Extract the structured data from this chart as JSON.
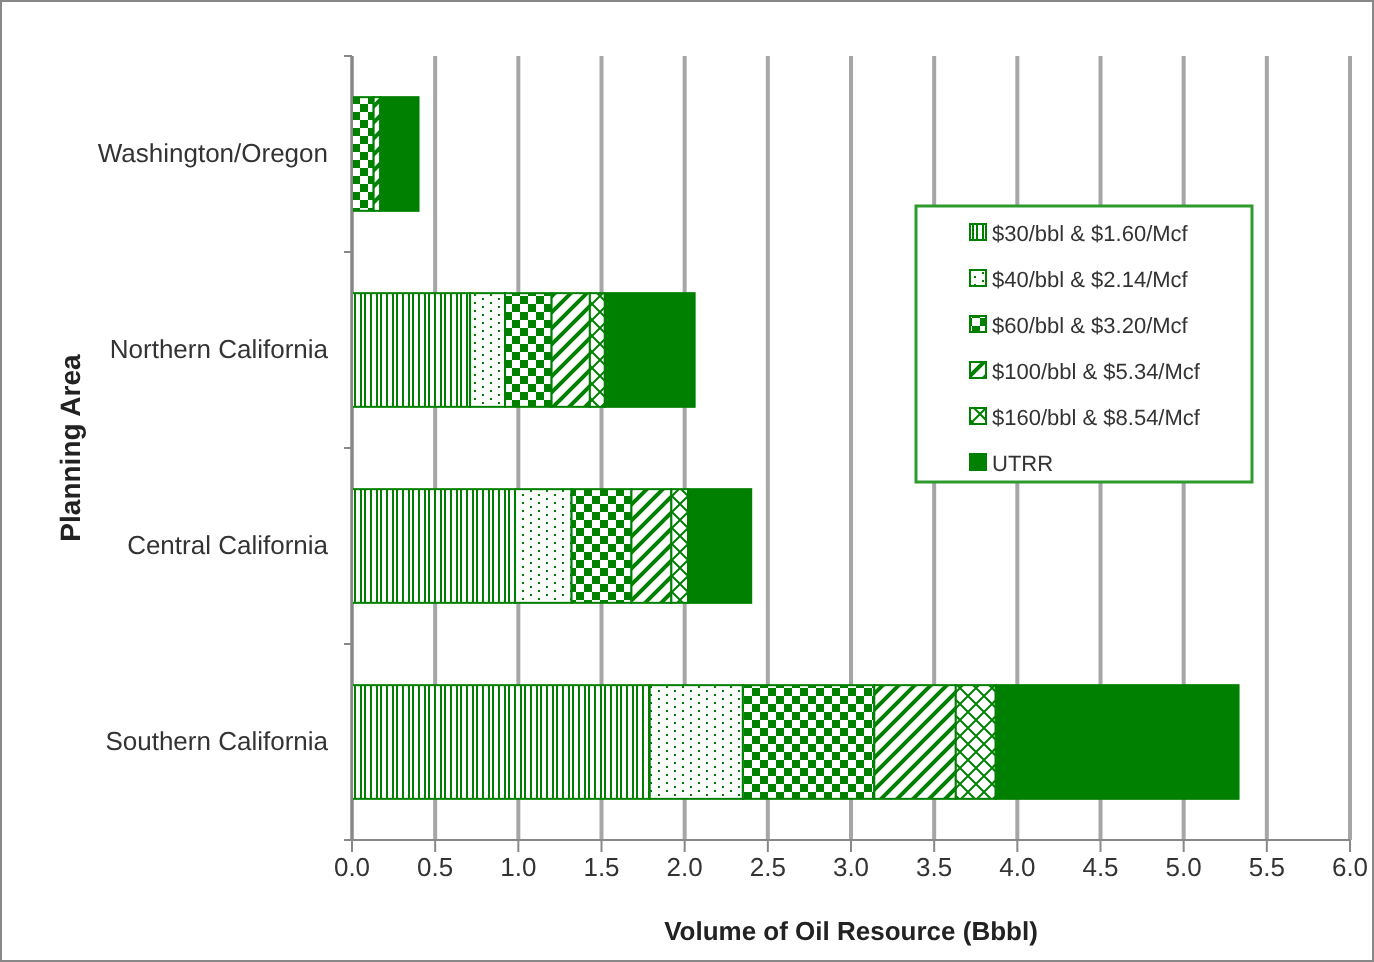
{
  "chart_data": {
    "type": "bar",
    "orientation": "horizontal",
    "stacked": true,
    "xlabel": "Volume of Oil Resource (Bbbl)",
    "ylabel": "Planning Area",
    "categories": [
      "Washington/Oregon",
      "Northern California",
      "Central California",
      "Southern California"
    ],
    "series": [
      {
        "name": "$30/bbl & $1.60/Mcf",
        "color": "#008000",
        "values": [
          null,
          0.71,
          0.98,
          1.79
        ]
      },
      {
        "name": "$40/bbl & $2.14/Mcf",
        "color": "#008000",
        "values": [
          null,
          0.21,
          0.34,
          0.56
        ]
      },
      {
        "name": "$60/bbl & $3.20/Mcf",
        "color": "#008000",
        "values": [
          0.13,
          0.28,
          0.36,
          0.79
        ]
      },
      {
        "name": "$100/bbl & $5.34/Mcf",
        "color": "#008000",
        "values": [
          0.04,
          0.23,
          0.24,
          0.49
        ]
      },
      {
        "name": "$160/bbl & $8.54/Mcf",
        "color": "#008000",
        "values": [
          null,
          0.09,
          0.1,
          0.24
        ]
      },
      {
        "name": "UTRR",
        "color": "#008000",
        "values": [
          0.23,
          0.54,
          0.38,
          1.46
        ]
      }
    ],
    "xlim": [
      0,
      6
    ],
    "xticks": [
      {
        "value": 0,
        "label": "0.0"
      },
      {
        "value": 0.5,
        "label": "0.5"
      },
      {
        "value": 1,
        "label": "1.0"
      },
      {
        "value": 1.5,
        "label": "1.5"
      },
      {
        "value": 2,
        "label": "2.0"
      },
      {
        "value": 2.5,
        "label": "2.5"
      },
      {
        "value": 3,
        "label": "3.0"
      },
      {
        "value": 3.5,
        "label": "3.5"
      },
      {
        "value": 4,
        "label": "4.0"
      },
      {
        "value": 4.5,
        "label": "4.5"
      },
      {
        "value": 5,
        "label": "5.0"
      },
      {
        "value": 5.5,
        "label": "5.5"
      },
      {
        "value": 6,
        "label": "6.0"
      }
    ],
    "grid": "x",
    "legend": "right"
  }
}
